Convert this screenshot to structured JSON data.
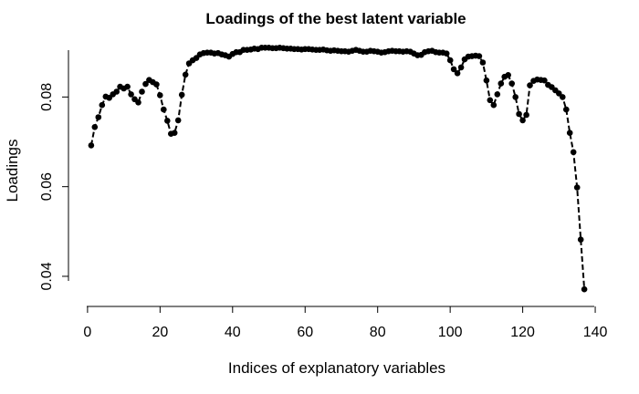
{
  "chart_data": {
    "type": "line",
    "title": "Loadings of the best latent variable",
    "xlabel": "Indices of explanatory variables",
    "ylabel": "Loadings",
    "xlim": [
      -4,
      142
    ],
    "ylim": [
      0.0345,
      0.0935
    ],
    "xticks": [
      0,
      20,
      40,
      60,
      80,
      100,
      120,
      140
    ],
    "xtick_labels": [
      "0",
      "20",
      "40",
      "60",
      "80",
      "100",
      "120",
      "140"
    ],
    "yticks": [
      0.04,
      0.06,
      0.08
    ],
    "ytick_labels": [
      "0.04",
      "0.06",
      "0.08"
    ],
    "series": [
      {
        "x": [
          1,
          2,
          3,
          4,
          5,
          6,
          7,
          8,
          9,
          10,
          11,
          12,
          13,
          14,
          15,
          16,
          17,
          18,
          19,
          20,
          21,
          22,
          23,
          24,
          25,
          26,
          27,
          28,
          29,
          30,
          31,
          32,
          33,
          34,
          35,
          36,
          37,
          38,
          39,
          40,
          41,
          42,
          43,
          44,
          45,
          46,
          47,
          48,
          49,
          50,
          51,
          52,
          53,
          54,
          55,
          56,
          57,
          58,
          59,
          60,
          61,
          62,
          63,
          64,
          65,
          66,
          67,
          68,
          69,
          70,
          71,
          72,
          73,
          74,
          75,
          76,
          77,
          78,
          79,
          80,
          81,
          82,
          83,
          84,
          85,
          86,
          87,
          88,
          89,
          90,
          91,
          92,
          93,
          94,
          95,
          96,
          97,
          98,
          99,
          100,
          101,
          102,
          103,
          104,
          105,
          106,
          107,
          108,
          109,
          110,
          111,
          112,
          113,
          114,
          115,
          116,
          117,
          118,
          119,
          120,
          121,
          122,
          123,
          124,
          125,
          126,
          127,
          128,
          129,
          130,
          131,
          132,
          133,
          134,
          135,
          136,
          137
        ],
        "y": [
          0.0692,
          0.0733,
          0.0755,
          0.0782,
          0.0801,
          0.0798,
          0.0806,
          0.0812,
          0.0823,
          0.0819,
          0.0823,
          0.0806,
          0.0795,
          0.0788,
          0.0812,
          0.0829,
          0.0838,
          0.0833,
          0.0828,
          0.0804,
          0.0772,
          0.0747,
          0.0718,
          0.072,
          0.0748,
          0.0805,
          0.085,
          0.0875,
          0.0882,
          0.0887,
          0.0895,
          0.0898,
          0.0899,
          0.0899,
          0.0897,
          0.0898,
          0.0895,
          0.0893,
          0.089,
          0.0896,
          0.09,
          0.09,
          0.0905,
          0.0905,
          0.0906,
          0.0908,
          0.0907,
          0.091,
          0.091,
          0.091,
          0.0909,
          0.0909,
          0.091,
          0.0909,
          0.0908,
          0.0908,
          0.0907,
          0.0907,
          0.0906,
          0.0907,
          0.0907,
          0.0906,
          0.0905,
          0.0905,
          0.0906,
          0.0904,
          0.0903,
          0.0904,
          0.0903,
          0.0902,
          0.0902,
          0.0901,
          0.0903,
          0.0905,
          0.0903,
          0.0901,
          0.0901,
          0.0903,
          0.0902,
          0.0901,
          0.0899,
          0.09,
          0.0902,
          0.0903,
          0.0902,
          0.0902,
          0.0901,
          0.0902,
          0.0901,
          0.0897,
          0.0893,
          0.0894,
          0.09,
          0.0902,
          0.0903,
          0.09,
          0.0899,
          0.0899,
          0.0897,
          0.0882,
          0.0862,
          0.0853,
          0.0866,
          0.0884,
          0.089,
          0.0891,
          0.0892,
          0.0891,
          0.0877,
          0.0837,
          0.0793,
          0.0782,
          0.0806,
          0.083,
          0.0845,
          0.0849,
          0.083,
          0.08,
          0.0762,
          0.0748,
          0.076,
          0.0826,
          0.0836,
          0.0839,
          0.0838,
          0.0837,
          0.0827,
          0.0822,
          0.0815,
          0.0808,
          0.08,
          0.0772,
          0.072,
          0.0677,
          0.0598,
          0.0482,
          0.0371
        ]
      }
    ]
  }
}
